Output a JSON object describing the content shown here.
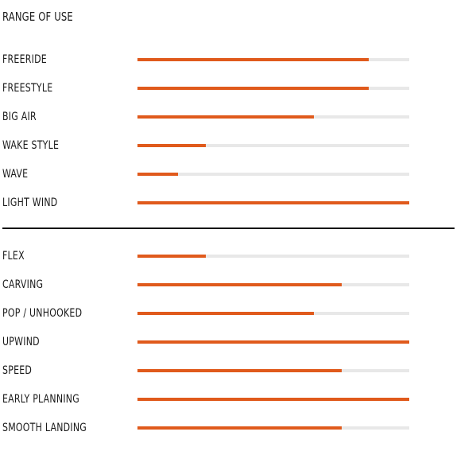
{
  "title": "RANGE OF USE",
  "colors": {
    "accent": "#e05a1c",
    "track": "#e8e8e8",
    "divider": "#111111"
  },
  "range_of_use": [
    {
      "label": "FREERIDE",
      "level": 0.85
    },
    {
      "label": "FREESTYLE",
      "level": 0.85
    },
    {
      "label": "BIG AIR",
      "level": 0.65
    },
    {
      "label": "WAKE STYLE",
      "level": 0.25
    },
    {
      "label": "WAVE",
      "level": 0.15
    },
    {
      "label": "LIGHT WIND",
      "level": 1.0
    }
  ],
  "characteristics": [
    {
      "label": "FLEX",
      "level": 0.25
    },
    {
      "label": "CARVING",
      "level": 0.75
    },
    {
      "label": "POP / UNHOOKED",
      "level": 0.65
    },
    {
      "label": "UPWIND",
      "level": 1.0
    },
    {
      "label": "SPEED",
      "level": 0.75
    },
    {
      "label": "EARLY PLANNING",
      "level": 1.0
    },
    {
      "label": "SMOOTH LANDING",
      "level": 0.75
    }
  ]
}
